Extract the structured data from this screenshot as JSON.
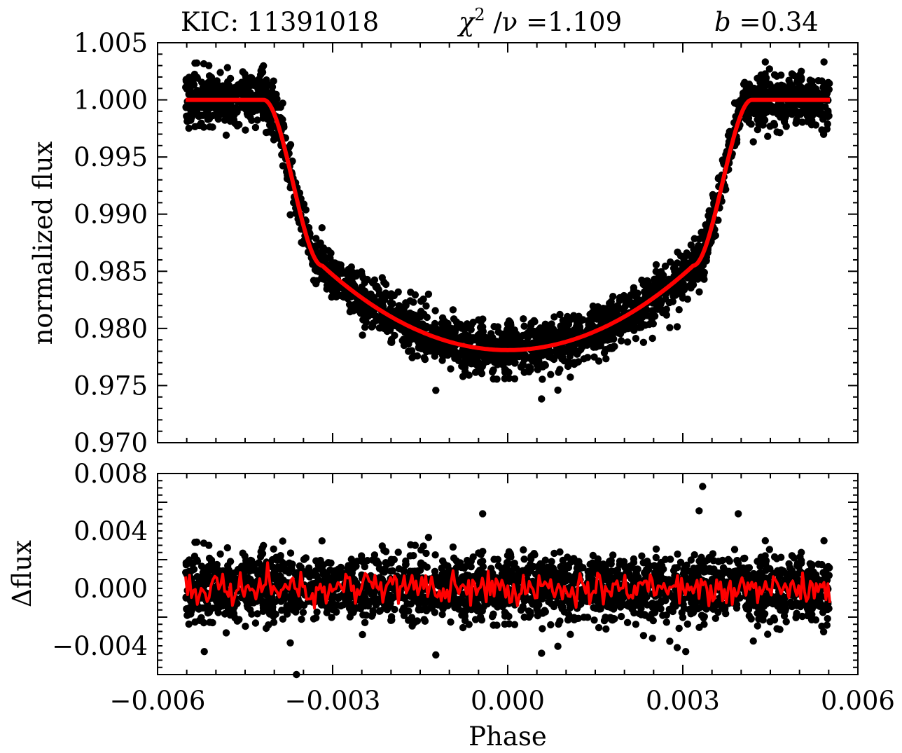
{
  "colors": {
    "data_points": "#000000",
    "model_line": "#ff0000",
    "frame": "#000000",
    "background": "#ffffff"
  },
  "header": {
    "target": "KIC:  11391018",
    "chi2_symbol": "χ",
    "chi2_power": "2",
    "chi2_rest": " /ν =1.109",
    "b_symbol": "b",
    "b_value": " =0.34"
  },
  "chart_data": [
    {
      "type": "scatter",
      "panel": "top",
      "title": "",
      "xlabel": "",
      "ylabel": "normalized  flux",
      "xlim": [
        -0.006,
        0.006
      ],
      "ylim": [
        0.97,
        1.005
      ],
      "yticks": [
        "1.005",
        "1.000",
        "0.995",
        "0.990",
        "0.985",
        "0.980",
        "0.975",
        "0.970"
      ],
      "grid": false,
      "observations": {
        "phase_range": [
          -0.00552,
          0.00552
        ],
        "scatter_sigma": 0.00145,
        "description": "transit light curve observations, black dots"
      },
      "model": {
        "type": "line",
        "baseline_flux": 1.0,
        "min_flux": 0.9781,
        "ingress_start": -0.00418,
        "ingress_end": -0.00318,
        "egress_start": 0.00318,
        "egress_end": 0.00418,
        "limb_value_at_contact": 0.9855
      }
    },
    {
      "type": "scatter",
      "panel": "bottom",
      "title": "",
      "xlabel": "Phase",
      "ylabel": "Δflux",
      "xlim": [
        -0.006,
        0.006
      ],
      "ylim": [
        -0.006,
        0.008
      ],
      "xticks": [
        "−0.006",
        "−0.003",
        "0.000",
        "0.003",
        "0.006"
      ],
      "yticks": [
        "0.008",
        "0.004",
        "0.000",
        "−0.004"
      ],
      "grid": false,
      "residuals": {
        "phase_range": [
          -0.00552,
          0.00552
        ],
        "scatter_sigma": 0.00145,
        "outliers": [
          {
            "x": 0.00334,
            "y": 0.0071
          },
          {
            "x": 0.00328,
            "y": 0.0054
          },
          {
            "x": 0.00395,
            "y": 0.0052
          },
          {
            "x": -0.00043,
            "y": 0.0052
          },
          {
            "x": -0.0052,
            "y": -0.0044
          },
          {
            "x": -0.00362,
            "y": -0.006
          },
          {
            "x": 0.00305,
            "y": -0.0044
          }
        ]
      },
      "binned_residual_line": {
        "type": "line",
        "amplitude": 0.0012,
        "description": "binned residuals, red line"
      }
    }
  ]
}
